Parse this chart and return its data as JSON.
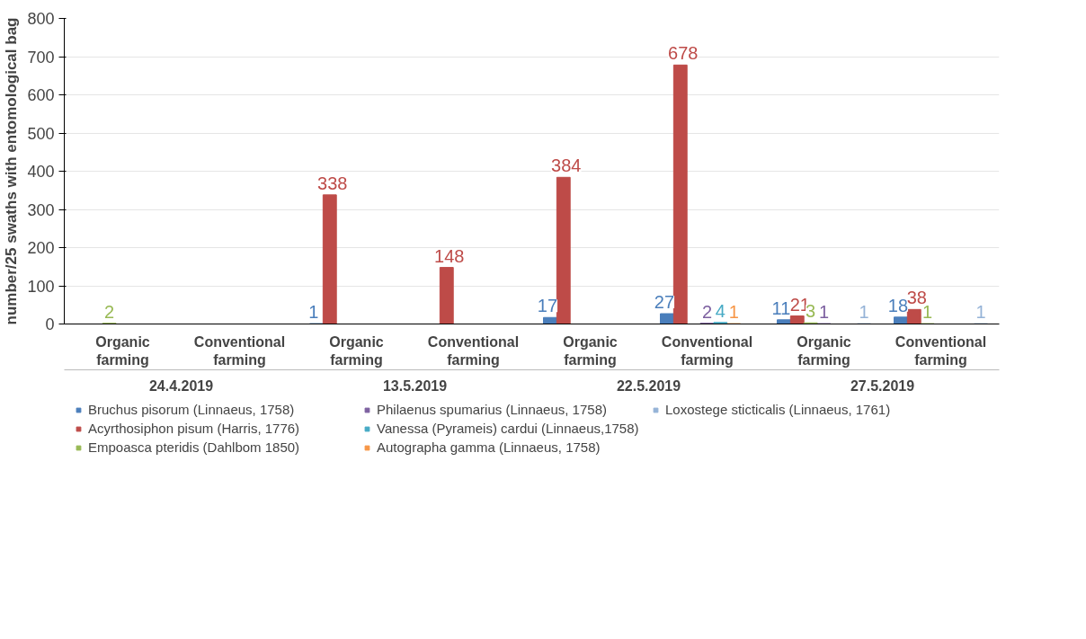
{
  "chart_data": {
    "type": "bar",
    "ylabel": "number/25 swaths with entomological bag",
    "categories": [
      "Organic farming",
      "Conventional farming",
      "Organic farming",
      "Conventional farming",
      "Organic farming",
      "Conventional farming",
      "Organic farming",
      "Conventional farming"
    ],
    "annotations": [
      "24.4.2019",
      "13.5.2019",
      "22.5.2019",
      "27.5.2019"
    ],
    "series": [
      {
        "name": "Bruchus pisorum (Linnaeus, 1758)",
        "color": "#4a7ebb",
        "values": [
          null,
          null,
          1,
          null,
          17,
          27,
          11,
          18
        ]
      },
      {
        "name": "Acyrthosiphon pisum (Harris, 1776)",
        "color": "#be4b48",
        "values": [
          null,
          null,
          338,
          148,
          384,
          678,
          21,
          38
        ]
      },
      {
        "name": "Empoasca pteridis (Dahlbom 1850)",
        "color": "#98b954",
        "values": [
          2,
          null,
          null,
          null,
          null,
          null,
          3,
          1
        ]
      },
      {
        "name": "Philaenus spumarius (Linnaeus, 1758)",
        "color": "#7d60a0",
        "values": [
          null,
          null,
          null,
          null,
          null,
          2,
          1,
          null
        ]
      },
      {
        "name": "Vanessa (Pyrameis) cardui (Linnaeus,1758)",
        "color": "#46aac5",
        "values": [
          null,
          null,
          null,
          null,
          null,
          4,
          null,
          null
        ]
      },
      {
        "name": "Autographa gamma (Linnaeus, 1758)",
        "color": "#f79646",
        "values": [
          null,
          null,
          null,
          null,
          null,
          1,
          null,
          null
        ]
      },
      {
        "name": "Loxostege sticticalis (Linnaeus, 1761)",
        "color": "#95b3d7",
        "values": [
          null,
          null,
          null,
          null,
          null,
          null,
          1,
          1
        ]
      }
    ],
    "ylim": [
      0,
      800
    ],
    "yticks": [
      0,
      100,
      200,
      300,
      400,
      500,
      600,
      700,
      800
    ],
    "grid": "y",
    "legend": "bottom",
    "data_labels": true
  }
}
